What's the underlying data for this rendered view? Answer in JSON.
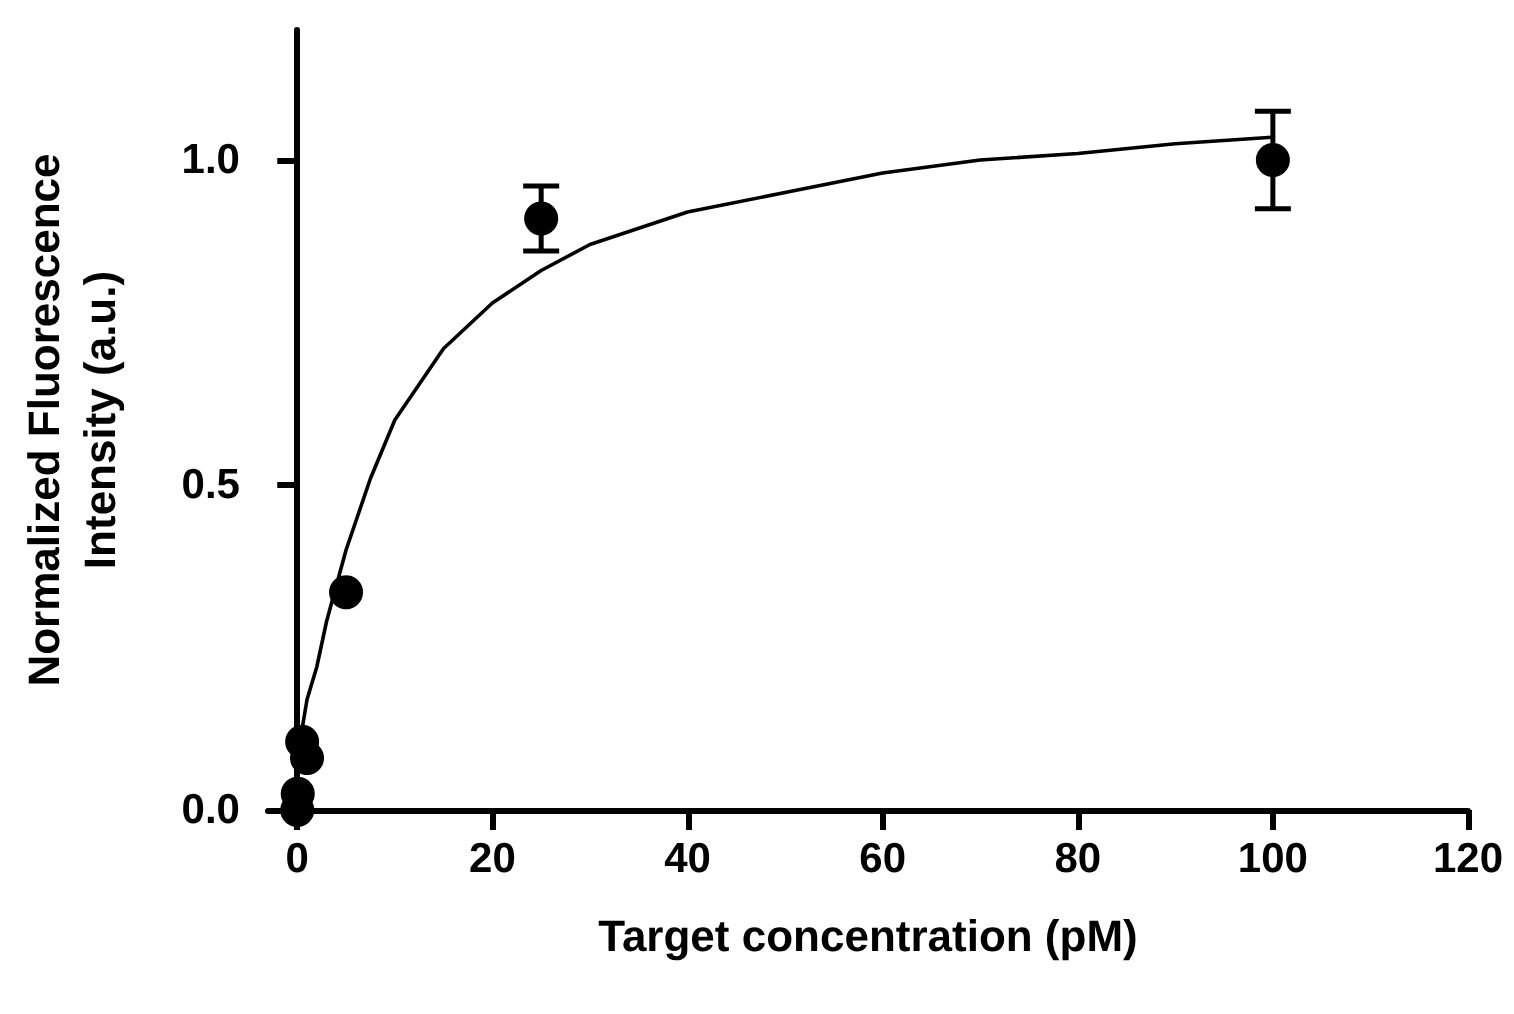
{
  "chart_data": {
    "type": "scatter",
    "xlabel": "Target concentration (pM)",
    "ylabel": "Normalized Fluorescence\nIntensity (a.u.)",
    "xlim": [
      -3,
      120
    ],
    "xticks": [
      0,
      20,
      40,
      60,
      80,
      100,
      120
    ],
    "ylim": [
      0,
      1.2
    ],
    "yticks": [
      {
        "value": 0,
        "label": "0.0"
      },
      {
        "value": 0.5,
        "label": "0.5"
      },
      {
        "value": 1,
        "label": "1.0"
      }
    ],
    "grid": false,
    "marker": "circle",
    "series": [
      {
        "color": "#000000",
        "x": [
          0,
          0.05,
          0.5,
          1,
          5,
          25,
          100
        ],
        "values": [
          0,
          0.025,
          0.105,
          0.08,
          0.335,
          0.91,
          1.0
        ],
        "errors": [
          null,
          null,
          null,
          null,
          null,
          0.05,
          0.075
        ]
      },
      {
        "type": "line",
        "color": "#000000",
        "marker": "none",
        "line_style": "solid",
        "x": [
          0,
          1,
          2,
          3,
          5,
          7.5,
          10,
          15,
          20,
          25,
          30,
          40,
          50,
          60,
          70,
          80,
          90,
          100
        ],
        "values": [
          0.08,
          0.17,
          0.22,
          0.29,
          0.4,
          0.51,
          0.6,
          0.71,
          0.78,
          0.83,
          0.87,
          0.92,
          0.95,
          0.98,
          1.0,
          1.01,
          1.025,
          1.035
        ]
      }
    ]
  }
}
